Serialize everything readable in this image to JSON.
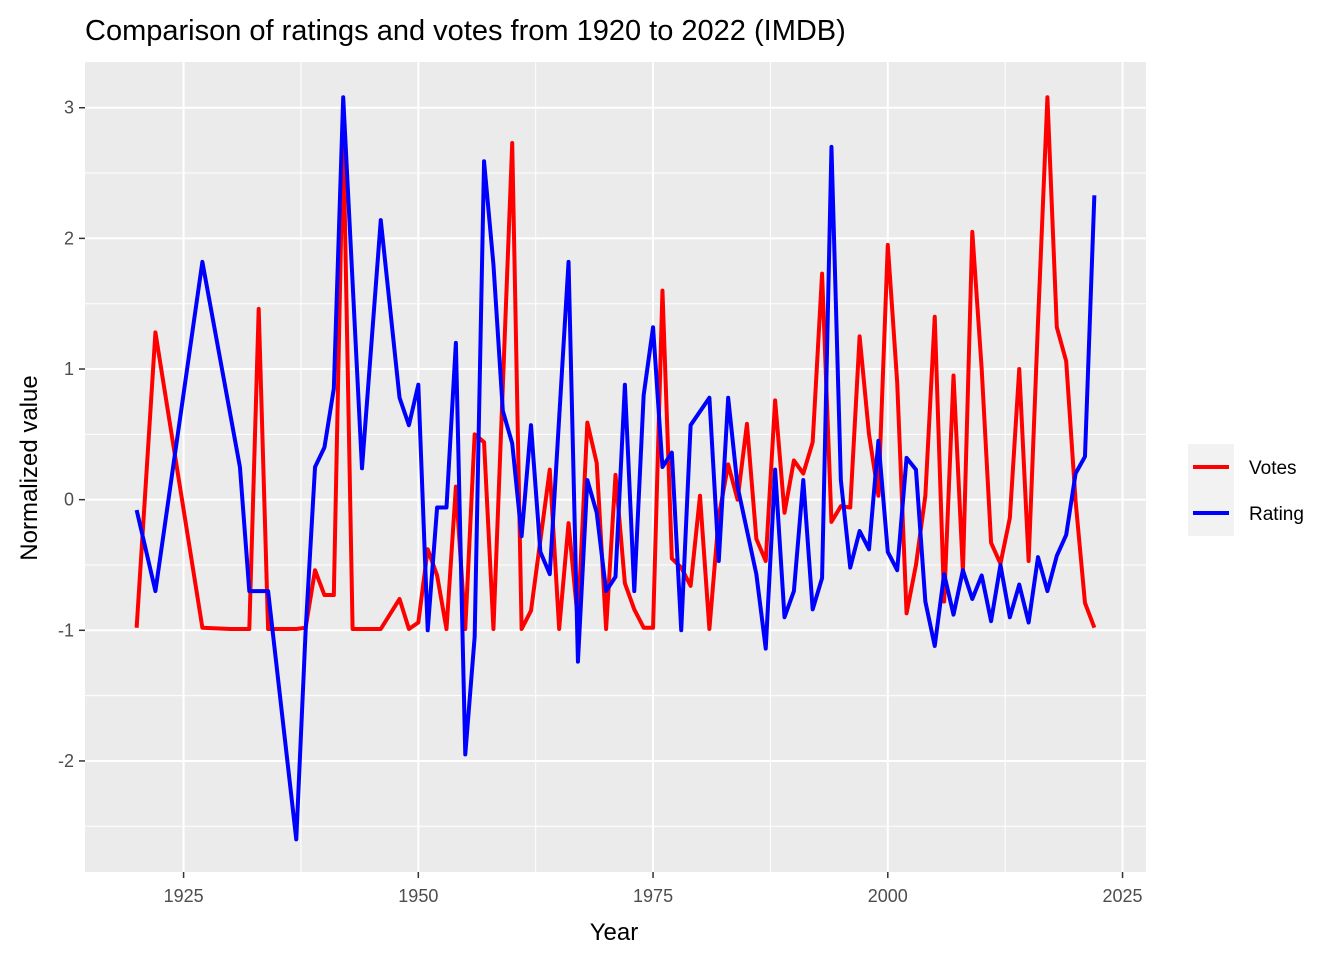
{
  "chart_data": {
    "type": "line",
    "title": "Comparison of ratings and votes from 1920 to 2022 (IMDB)",
    "xlabel": "Year",
    "ylabel": "Normalized value",
    "xlim": [
      1914.5,
      2027.5
    ],
    "ylim": [
      -2.85,
      3.35
    ],
    "x_ticks": [
      1925,
      1950,
      1975,
      2000,
      2025
    ],
    "y_ticks": [
      -2,
      -1,
      0,
      1,
      2,
      3
    ],
    "grid": true,
    "legend_position": "right",
    "colors": {
      "panel": "#ebebeb",
      "grid": "#ffffff",
      "votes": "#ff0000",
      "rating": "#0000ff"
    },
    "series": [
      {
        "name": "Votes",
        "color": "#ff0000",
        "points": [
          [
            1920,
            -0.98
          ],
          [
            1922,
            1.28
          ],
          [
            1927,
            -0.98
          ],
          [
            1930,
            -0.99
          ],
          [
            1932,
            -0.99
          ],
          [
            1933,
            1.46
          ],
          [
            1934,
            -0.99
          ],
          [
            1937,
            -0.99
          ],
          [
            1938,
            -0.98
          ],
          [
            1939,
            -0.54
          ],
          [
            1940,
            -0.73
          ],
          [
            1941,
            -0.73
          ],
          [
            1942,
            2.84
          ],
          [
            1943,
            -0.99
          ],
          [
            1946,
            -0.99
          ],
          [
            1948,
            -0.76
          ],
          [
            1949,
            -0.99
          ],
          [
            1950,
            -0.94
          ],
          [
            1951,
            -0.38
          ],
          [
            1952,
            -0.58
          ],
          [
            1953,
            -0.99
          ],
          [
            1954,
            0.1
          ],
          [
            1955,
            -0.99
          ],
          [
            1956,
            0.5
          ],
          [
            1957,
            0.44
          ],
          [
            1958,
            -0.99
          ],
          [
            1960,
            2.73
          ],
          [
            1961,
            -0.99
          ],
          [
            1962,
            -0.85
          ],
          [
            1964,
            0.23
          ],
          [
            1965,
            -0.99
          ],
          [
            1966,
            -0.18
          ],
          [
            1967,
            -0.93
          ],
          [
            1968,
            0.59
          ],
          [
            1969,
            0.28
          ],
          [
            1970,
            -0.99
          ],
          [
            1971,
            0.19
          ],
          [
            1972,
            -0.64
          ],
          [
            1973,
            -0.84
          ],
          [
            1974,
            -0.98
          ],
          [
            1975,
            -0.98
          ],
          [
            1976,
            1.6
          ],
          [
            1977,
            -0.45
          ],
          [
            1978,
            -0.52
          ],
          [
            1979,
            -0.66
          ],
          [
            1980,
            0.03
          ],
          [
            1981,
            -0.99
          ],
          [
            1982,
            -0.13
          ],
          [
            1983,
            0.27
          ],
          [
            1984,
            0.0
          ],
          [
            1985,
            0.58
          ],
          [
            1986,
            -0.3
          ],
          [
            1987,
            -0.47
          ],
          [
            1988,
            0.76
          ],
          [
            1989,
            -0.1
          ],
          [
            1990,
            0.3
          ],
          [
            1991,
            0.2
          ],
          [
            1992,
            0.44
          ],
          [
            1993,
            1.73
          ],
          [
            1994,
            -0.17
          ],
          [
            1995,
            -0.05
          ],
          [
            1996,
            -0.06
          ],
          [
            1997,
            1.25
          ],
          [
            1998,
            0.5
          ],
          [
            1999,
            0.03
          ],
          [
            2000,
            1.95
          ],
          [
            2001,
            0.9
          ],
          [
            2002,
            -0.87
          ],
          [
            2003,
            -0.5
          ],
          [
            2004,
            0.03
          ],
          [
            2005,
            1.4
          ],
          [
            2006,
            -0.78
          ],
          [
            2007,
            0.95
          ],
          [
            2008,
            -0.55
          ],
          [
            2009,
            2.05
          ],
          [
            2010,
            1.0
          ],
          [
            2011,
            -0.33
          ],
          [
            2012,
            -0.49
          ],
          [
            2013,
            -0.14
          ],
          [
            2014,
            1.0
          ],
          [
            2015,
            -0.47
          ],
          [
            2016,
            1.36
          ],
          [
            2017,
            3.08
          ],
          [
            2018,
            1.32
          ],
          [
            2019,
            1.06
          ],
          [
            2020,
            -0.01
          ],
          [
            2021,
            -0.79
          ],
          [
            2022,
            -0.98
          ]
        ]
      },
      {
        "name": "Rating",
        "color": "#0000ff",
        "points": [
          [
            1920,
            -0.08
          ],
          [
            1922,
            -0.7
          ],
          [
            1927,
            1.82
          ],
          [
            1931,
            0.25
          ],
          [
            1932,
            -0.7
          ],
          [
            1934,
            -0.7
          ],
          [
            1937,
            -2.6
          ],
          [
            1938,
            -1.0
          ],
          [
            1939,
            0.25
          ],
          [
            1940,
            0.4
          ],
          [
            1941,
            0.85
          ],
          [
            1942,
            3.08
          ],
          [
            1944,
            0.24
          ],
          [
            1946,
            2.14
          ],
          [
            1948,
            0.78
          ],
          [
            1949,
            0.57
          ],
          [
            1950,
            0.88
          ],
          [
            1951,
            -1.0
          ],
          [
            1952,
            -0.06
          ],
          [
            1953,
            -0.06
          ],
          [
            1954,
            1.2
          ],
          [
            1955,
            -1.95
          ],
          [
            1956,
            -1.05
          ],
          [
            1957,
            2.59
          ],
          [
            1958,
            1.8
          ],
          [
            1959,
            0.68
          ],
          [
            1960,
            0.43
          ],
          [
            1961,
            -0.28
          ],
          [
            1962,
            0.57
          ],
          [
            1963,
            -0.4
          ],
          [
            1964,
            -0.57
          ],
          [
            1966,
            1.82
          ],
          [
            1967,
            -1.24
          ],
          [
            1968,
            0.15
          ],
          [
            1969,
            -0.1
          ],
          [
            1970,
            -0.7
          ],
          [
            1971,
            -0.59
          ],
          [
            1972,
            0.88
          ],
          [
            1973,
            -0.7
          ],
          [
            1974,
            0.8
          ],
          [
            1975,
            1.32
          ],
          [
            1976,
            0.25
          ],
          [
            1977,
            0.36
          ],
          [
            1978,
            -1.0
          ],
          [
            1979,
            0.57
          ],
          [
            1981,
            0.78
          ],
          [
            1982,
            -0.47
          ],
          [
            1983,
            0.78
          ],
          [
            1984,
            0.1
          ],
          [
            1986,
            -0.57
          ],
          [
            1987,
            -1.14
          ],
          [
            1988,
            0.23
          ],
          [
            1989,
            -0.9
          ],
          [
            1990,
            -0.7
          ],
          [
            1991,
            0.15
          ],
          [
            1992,
            -0.84
          ],
          [
            1993,
            -0.6
          ],
          [
            1994,
            2.7
          ],
          [
            1995,
            0.15
          ],
          [
            1996,
            -0.52
          ],
          [
            1997,
            -0.24
          ],
          [
            1998,
            -0.38
          ],
          [
            1999,
            0.45
          ],
          [
            2000,
            -0.4
          ],
          [
            2001,
            -0.54
          ],
          [
            2002,
            0.32
          ],
          [
            2003,
            0.23
          ],
          [
            2004,
            -0.78
          ],
          [
            2005,
            -1.12
          ],
          [
            2006,
            -0.57
          ],
          [
            2007,
            -0.88
          ],
          [
            2008,
            -0.54
          ],
          [
            2009,
            -0.76
          ],
          [
            2010,
            -0.58
          ],
          [
            2011,
            -0.93
          ],
          [
            2012,
            -0.5
          ],
          [
            2013,
            -0.9
          ],
          [
            2014,
            -0.65
          ],
          [
            2015,
            -0.94
          ],
          [
            2016,
            -0.44
          ],
          [
            2017,
            -0.7
          ],
          [
            2018,
            -0.43
          ],
          [
            2019,
            -0.27
          ],
          [
            2020,
            0.2
          ],
          [
            2021,
            0.33
          ],
          [
            2022,
            2.33
          ]
        ]
      }
    ]
  }
}
